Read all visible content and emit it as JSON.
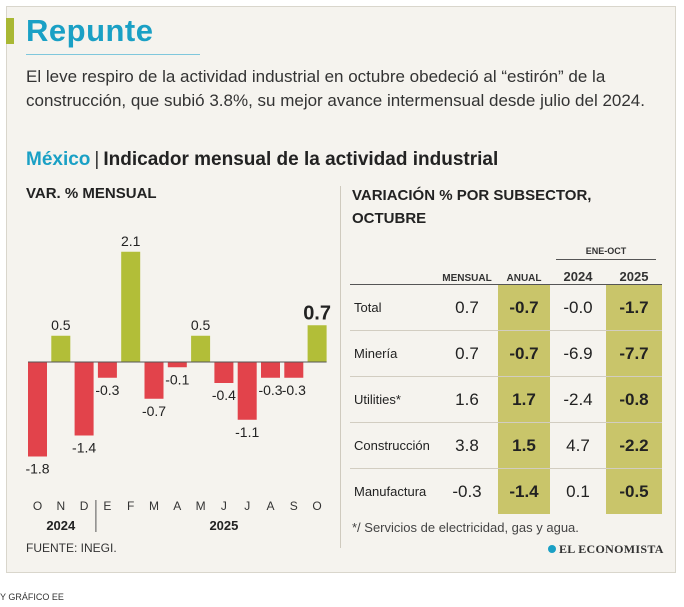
{
  "header": {
    "title": "Repunte",
    "intro": "El leve respiro de la actividad industrial en octubre obedeció al “estirón” de la construcción, que subió 3.8%, su mejor avance intermensual desde julio del 2024.",
    "country": "México",
    "separator": "|",
    "subtitle": "Indicador mensual de la actividad industrial"
  },
  "colors": {
    "positive": "#b2be38",
    "negative": "#e2434b",
    "accent": "#1aa0c5",
    "highlight": "#c9c56a"
  },
  "chart_data": {
    "type": "bar",
    "title": "VAR. % MENSUAL",
    "categories": [
      "O",
      "N",
      "D",
      "E",
      "F",
      "M",
      "A",
      "M",
      "J",
      "J",
      "A",
      "S",
      "O"
    ],
    "year_labels": [
      "2024",
      "2025"
    ],
    "values": [
      -1.8,
      0.5,
      -1.4,
      -0.3,
      2.1,
      -0.7,
      -0.1,
      0.5,
      -0.4,
      -1.1,
      -0.3,
      -0.3,
      0.7
    ],
    "value_labels": [
      "-1.8",
      "0.5",
      "-1.4",
      "-0.3",
      "2.1",
      "-0.7",
      "-0.1",
      "0.5",
      "-0.4",
      "-1.1",
      "-0.3",
      "-0.3",
      "0.7"
    ],
    "highlight_last": true,
    "ylim": [
      -2.0,
      2.4
    ]
  },
  "table": {
    "title": "VARIACIÓN % POR SUBSECTOR, OCTUBRE",
    "group_header": "ENE-OCT",
    "columns": [
      "MENSUAL",
      "ANUAL",
      "2024",
      "2025"
    ],
    "rows": [
      {
        "name": "Total",
        "mensual": "0.7",
        "anual": "-0.7",
        "y2024": "-0.0",
        "y2025": "-1.7"
      },
      {
        "name": "Minería",
        "mensual": "0.7",
        "anual": "-0.7",
        "y2024": "-6.9",
        "y2025": "-7.7"
      },
      {
        "name": "Utilities*",
        "mensual": "1.6",
        "anual": "1.7",
        "y2024": "-2.4",
        "y2025": "-0.8"
      },
      {
        "name": "Construcción",
        "mensual": "3.8",
        "anual": "1.5",
        "y2024": "4.7",
        "y2025": "-2.2"
      },
      {
        "name": "Manufactura",
        "mensual": "-0.3",
        "anual": "-1.4",
        "y2024": "0.1",
        "y2025": "-0.5"
      }
    ],
    "footnote": "*/ Servicios de electricidad, gas y agua."
  },
  "footer": {
    "source": "FUENTE: INEGI.",
    "brand": "EL ECONOMISTA",
    "credit": "Y GRÁFICO EE"
  }
}
